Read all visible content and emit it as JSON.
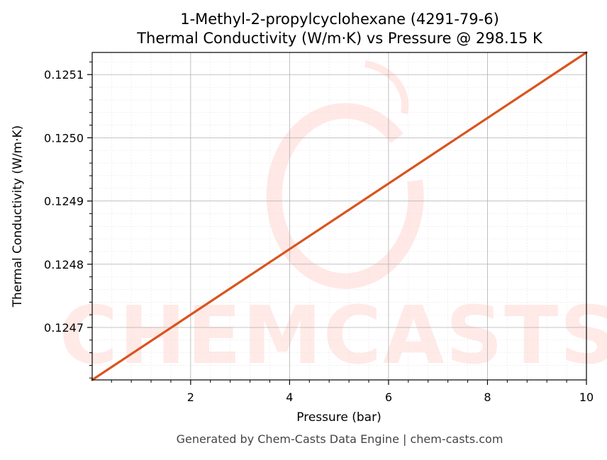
{
  "chart_data": {
    "type": "line",
    "title_line1": "1-Methyl-2-propylcyclohexane (4291-79-6)",
    "title_line2": "Thermal Conductivity (W/m·K) vs Pressure @ 298.15 K",
    "xlabel": "Pressure (bar)",
    "ylabel": "Thermal Conductivity (W/m·K)",
    "xlim": [
      0.01,
      10
    ],
    "ylim": [
      0.124617,
      0.125135
    ],
    "x_ticks": [
      2,
      4,
      6,
      8,
      10
    ],
    "x_tick_labels": [
      "2",
      "4",
      "6",
      "8",
      "10"
    ],
    "y_ticks": [
      0.1247,
      0.1248,
      0.1249,
      0.125,
      0.1251
    ],
    "y_tick_labels": [
      "0.1247",
      "0.1248",
      "0.1249",
      "0.1250",
      "0.1251"
    ],
    "grid": true,
    "series": [
      {
        "color": "#d9541e",
        "x": [
          0.01,
          10
        ],
        "y": [
          0.124617,
          0.125135
        ]
      }
    ]
  },
  "watermark": "CHEMCASTS",
  "footer": "Generated by Chem-Casts Data Engine | chem-casts.com",
  "colors": {
    "line": "#d9541e",
    "watermark": "#ffd9d4"
  }
}
